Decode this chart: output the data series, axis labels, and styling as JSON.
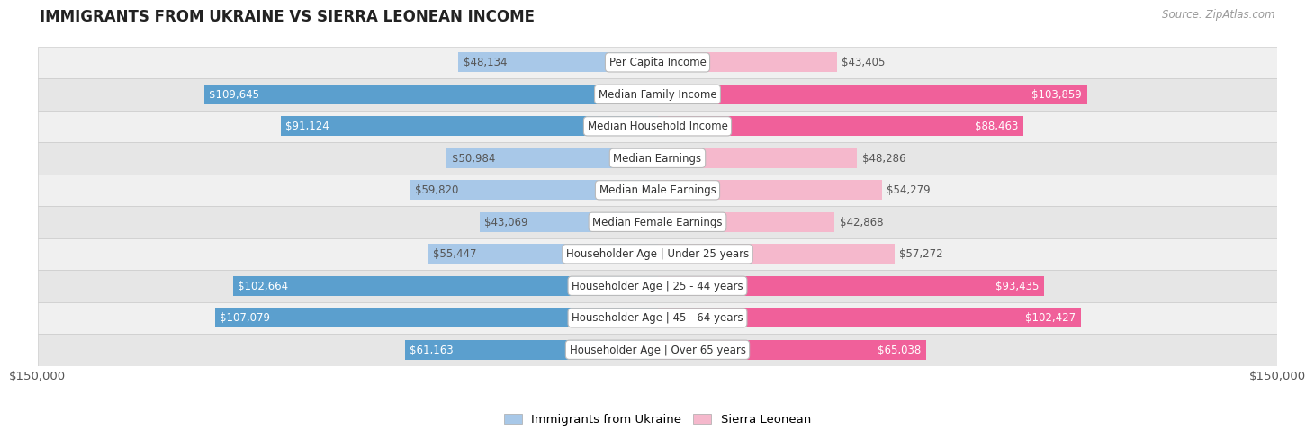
{
  "title": "IMMIGRANTS FROM UKRAINE VS SIERRA LEONEAN INCOME",
  "source": "Source: ZipAtlas.com",
  "categories": [
    "Per Capita Income",
    "Median Family Income",
    "Median Household Income",
    "Median Earnings",
    "Median Male Earnings",
    "Median Female Earnings",
    "Householder Age | Under 25 years",
    "Householder Age | 25 - 44 years",
    "Householder Age | 45 - 64 years",
    "Householder Age | Over 65 years"
  ],
  "ukraine_values": [
    48134,
    109645,
    91124,
    50984,
    59820,
    43069,
    55447,
    102664,
    107079,
    61163
  ],
  "sierraleonean_values": [
    43405,
    103859,
    88463,
    48286,
    54279,
    42868,
    57272,
    93435,
    102427,
    65038
  ],
  "ukraine_labels": [
    "$48,134",
    "$109,645",
    "$91,124",
    "$50,984",
    "$59,820",
    "$43,069",
    "$55,447",
    "$102,664",
    "$107,079",
    "$61,163"
  ],
  "sierraleonean_labels": [
    "$43,405",
    "$103,859",
    "$88,463",
    "$48,286",
    "$54,279",
    "$42,868",
    "$57,272",
    "$93,435",
    "$102,427",
    "$65,038"
  ],
  "ukraine_color_light": "#a8c8e8",
  "ukraine_color_dark": "#5b9fce",
  "sierraleonean_color_light": "#f5b8cc",
  "sierraleonean_color_dark": "#f0609a",
  "max_value": 150000,
  "bar_height": 0.62,
  "row_bg_even": "#f0f0f0",
  "row_bg_odd": "#e6e6e6",
  "legend_ukraine": "Immigrants from Ukraine",
  "legend_sierra": "Sierra Leonean",
  "xlabel_left": "$150,000",
  "xlabel_right": "$150,000",
  "inner_label_threshold": 60000,
  "label_fontsize": 8.5,
  "category_fontsize": 8.5
}
